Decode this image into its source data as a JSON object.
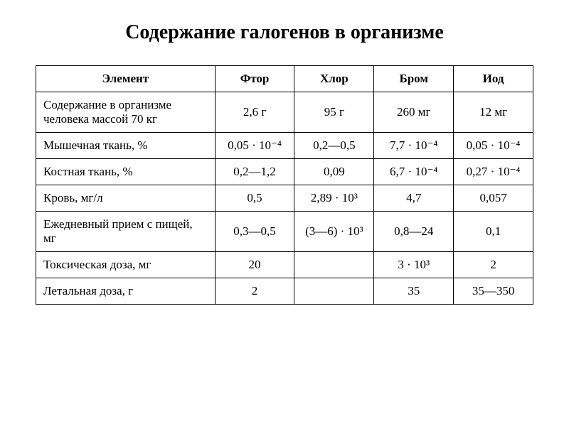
{
  "title": "Содержание галогенов в организме",
  "table": {
    "columns": [
      "Элемент",
      "Фтор",
      "Хлор",
      "Бром",
      "Иод"
    ],
    "rows": [
      {
        "label": "Содержание в организме человека массой 70 кг",
        "values": [
          "2,6 г",
          "95 г",
          "260 мг",
          "12 мг"
        ]
      },
      {
        "label": "Мышечная ткань, %",
        "values": [
          "0,05 · 10⁻⁴",
          "0,2—0,5",
          "7,7 · 10⁻⁴",
          "0,05 · 10⁻⁴"
        ]
      },
      {
        "label": "Костная ткань, %",
        "values": [
          "0,2—1,2",
          "0,09",
          "6,7 · 10⁻⁴",
          "0,27 · 10⁻⁴"
        ]
      },
      {
        "label": "Кровь, мг/л",
        "values": [
          "0,5",
          "2,89 · 10³",
          "4,7",
          "0,057"
        ]
      },
      {
        "label": "Ежедневный прием с пищей, мг",
        "values": [
          "0,3—0,5",
          "(3—6) · 10³",
          "0,8—24",
          "0,1"
        ]
      },
      {
        "label": "Токсическая доза, мг",
        "values": [
          "20",
          "",
          "3 · 10³",
          "2"
        ]
      },
      {
        "label": "Летальная доза, г",
        "values": [
          "2",
          "",
          "35",
          "35—350"
        ]
      }
    ],
    "styling": {
      "border_color": "#000000",
      "border_width": 1.5,
      "background_color": "#ffffff",
      "text_color": "#000000",
      "header_fontsize": 17,
      "cell_fontsize": 17,
      "title_fontsize": 28,
      "font_family": "Times New Roman",
      "col_widths_pct": [
        36,
        16,
        16,
        16,
        16
      ],
      "header_align": "center",
      "value_align": "center",
      "label_align": "left"
    }
  }
}
